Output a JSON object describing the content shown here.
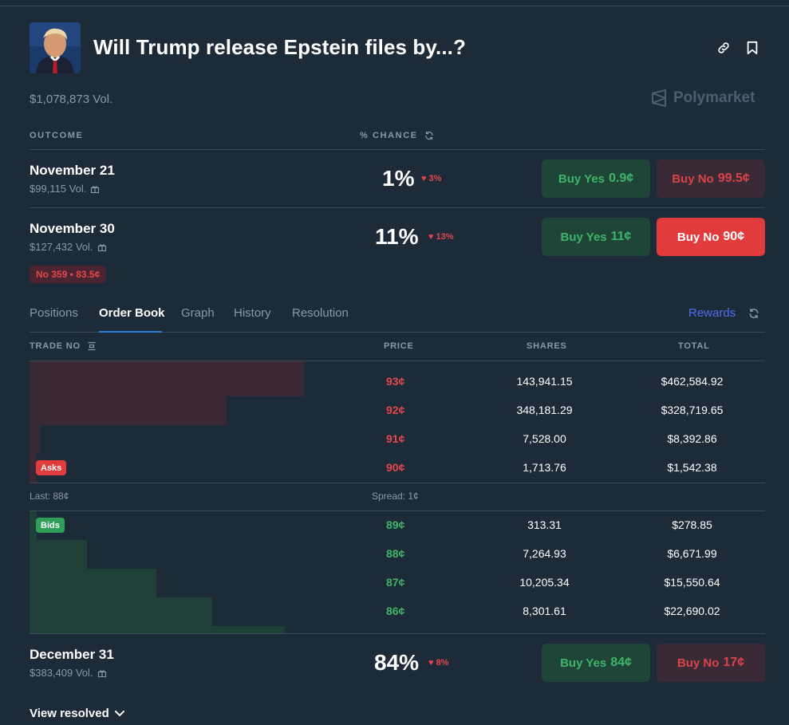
{
  "market": {
    "title": "Will Trump release Epstein files by...?",
    "volume": "$1,078,873 Vol.",
    "brand": "Polymarket"
  },
  "outcome_header": {
    "outcome": "OUTCOME",
    "chance": "% CHANCE"
  },
  "outcomes": [
    {
      "name": "November 21",
      "volume": "$99,115 Vol.",
      "chance": "1%",
      "delta": "3%",
      "yes_label": "Buy Yes",
      "yes_price": "0.9¢",
      "no_label": "Buy No",
      "no_price": "99.5¢"
    },
    {
      "name": "November 30",
      "volume": "$127,432 Vol.",
      "chance": "11%",
      "delta": "13%",
      "yes_label": "Buy Yes",
      "yes_price": "11¢",
      "no_label": "Buy No",
      "no_price": "90¢",
      "position": "No 359 • 83.5¢"
    },
    {
      "name": "December 31",
      "volume": "$383,409 Vol.",
      "chance": "84%",
      "delta": "8%",
      "yes_label": "Buy Yes",
      "yes_price": "84¢",
      "no_label": "Buy No",
      "no_price": "17¢"
    }
  ],
  "tabs": {
    "positions": "Positions",
    "order_book": "Order Book",
    "graph": "Graph",
    "history": "History",
    "resolution": "Resolution",
    "rewards": "Rewards"
  },
  "order_book": {
    "headers": {
      "trade": "TRADE NO",
      "price": "PRICE",
      "shares": "SHARES",
      "total": "TOTAL"
    },
    "asks_label": "Asks",
    "bids_label": "Bids",
    "last": "Last: 88¢",
    "spread": "Spread: 1¢",
    "asks": [
      {
        "price": "93¢",
        "shares": "143,941.15",
        "total": "$462,584.92"
      },
      {
        "price": "92¢",
        "shares": "348,181.29",
        "total": "$328,719.65"
      },
      {
        "price": "91¢",
        "shares": "7,528.00",
        "total": "$8,392.86"
      },
      {
        "price": "90¢",
        "shares": "1,713.76",
        "total": "$1,542.38"
      }
    ],
    "bids": [
      {
        "price": "89¢",
        "shares": "313.31",
        "total": "$278.85"
      },
      {
        "price": "88¢",
        "shares": "7,264.93",
        "total": "$6,671.99"
      },
      {
        "price": "87¢",
        "shares": "10,205.34",
        "total": "$15,550.64"
      },
      {
        "price": "86¢",
        "shares": "8,301.61",
        "total": "$22,690.02"
      }
    ]
  },
  "footer": {
    "view_resolved": "View resolved"
  },
  "colors": {
    "background": "#1d2b39",
    "yes_green": "#3db468",
    "no_red": "#e4474c",
    "accent_blue": "#2e7fd8"
  }
}
